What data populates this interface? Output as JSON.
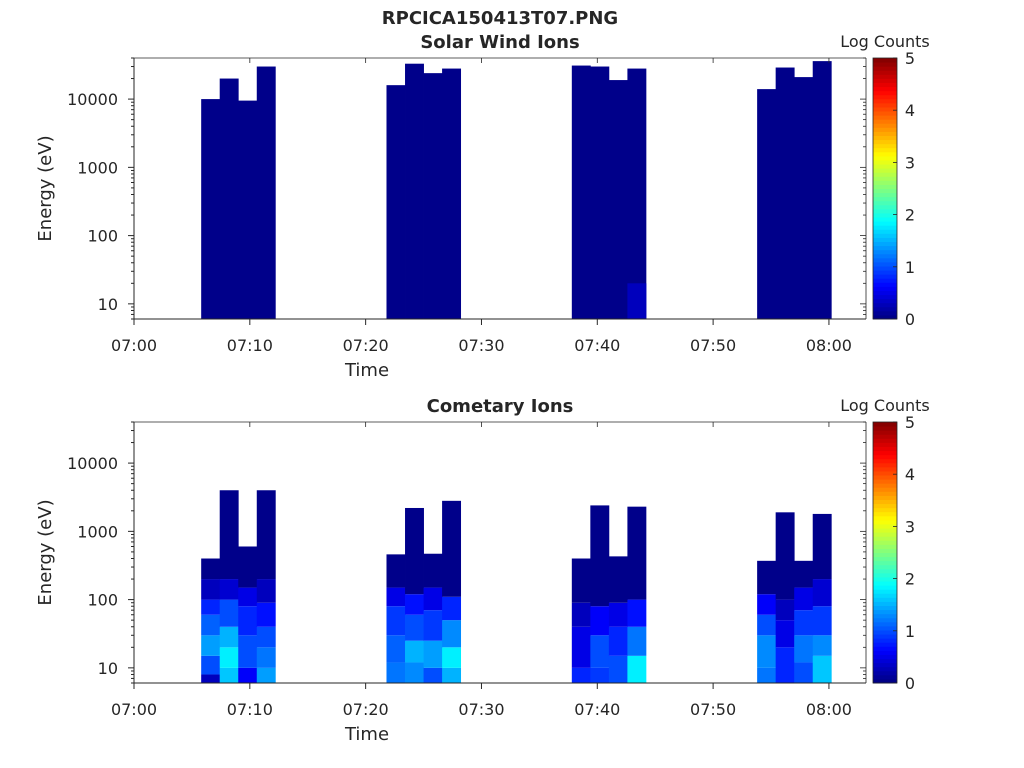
{
  "page_title": "RPCICA150413T07.PNG",
  "colors": {
    "axis": "#262626",
    "colormap": [
      "#00007f",
      "#0000ff",
      "#007fff",
      "#00ffff",
      "#7fff7f",
      "#ffff00",
      "#ff7f00",
      "#ff0000",
      "#7f0000"
    ]
  },
  "chart_data": [
    {
      "type": "heatmap",
      "title": "Solar Wind Ions",
      "xlabel": "Time",
      "ylabel": "Energy (eV)",
      "x_ticks": [
        "07:00",
        "07:10",
        "07:20",
        "07:30",
        "07:40",
        "07:50",
        "08:00"
      ],
      "x_tick_minutes": [
        0,
        10,
        20,
        30,
        40,
        50,
        60
      ],
      "xlim_minutes": [
        0,
        63.2
      ],
      "y_scale": "log",
      "ylim": [
        6,
        40000
      ],
      "y_ticks": [
        "10",
        "100",
        "1000",
        "10000"
      ],
      "y_tick_values": [
        10,
        100,
        1000,
        10000
      ],
      "colorbar": {
        "label": "Log Counts",
        "ticks": [
          "0",
          "1",
          "2",
          "3",
          "4",
          "5"
        ],
        "range": [
          0,
          5
        ]
      },
      "blocks": [
        {
          "start": 5.8,
          "columns": [
            {
              "w": 1.6,
              "top": 10000,
              "cells": [
                [
                  6,
                  10000,
                  0.05
                ]
              ]
            },
            {
              "w": 1.6,
              "top": 20000,
              "cells": [
                [
                  6,
                  20000,
                  0.05
                ]
              ]
            },
            {
              "w": 1.6,
              "top": 9500,
              "cells": [
                [
                  6,
                  9500,
                  0.05
                ]
              ]
            },
            {
              "w": 1.6,
              "top": 30000,
              "cells": [
                [
                  6,
                  30000,
                  0.05
                ]
              ]
            }
          ]
        },
        {
          "start": 21.8,
          "columns": [
            {
              "w": 1.6,
              "top": 16000,
              "cells": [
                [
                  6,
                  16000,
                  0.05
                ]
              ]
            },
            {
              "w": 1.6,
              "top": 33000,
              "cells": [
                [
                  6,
                  33000,
                  0.05
                ]
              ]
            },
            {
              "w": 1.6,
              "top": 24000,
              "cells": [
                [
                  6,
                  24000,
                  0.05
                ]
              ]
            },
            {
              "w": 1.6,
              "top": 28000,
              "cells": [
                [
                  6,
                  28000,
                  0.05
                ]
              ]
            }
          ]
        },
        {
          "start": 37.8,
          "columns": [
            {
              "w": 1.6,
              "top": 31000,
              "cells": [
                [
                  6,
                  31000,
                  0.05
                ]
              ]
            },
            {
              "w": 1.6,
              "top": 30000,
              "cells": [
                [
                  6,
                  30000,
                  0.05
                ]
              ]
            },
            {
              "w": 1.6,
              "top": 19000,
              "cells": [
                [
                  6,
                  19000,
                  0.05
                ]
              ]
            },
            {
              "w": 1.6,
              "top": 28000,
              "cells": [
                [
                  6,
                  28000,
                  0.05
                ],
                [
                  6,
                  20,
                  0.3
                ]
              ]
            }
          ]
        },
        {
          "start": 53.8,
          "columns": [
            {
              "w": 1.6,
              "top": 14000,
              "cells": [
                [
                  6,
                  14000,
                  0.05
                ]
              ]
            },
            {
              "w": 1.6,
              "top": 29000,
              "cells": [
                [
                  6,
                  29000,
                  0.05
                ]
              ]
            },
            {
              "w": 1.6,
              "top": 21000,
              "cells": [
                [
                  6,
                  21000,
                  0.05
                ]
              ]
            },
            {
              "w": 1.6,
              "top": 36000,
              "cells": [
                [
                  6,
                  36000,
                  0.05
                ]
              ]
            }
          ]
        }
      ]
    },
    {
      "type": "heatmap",
      "title": "Cometary Ions",
      "xlabel": "Time",
      "ylabel": "Energy (eV)",
      "x_ticks": [
        "07:00",
        "07:10",
        "07:20",
        "07:30",
        "07:40",
        "07:50",
        "08:00"
      ],
      "x_tick_minutes": [
        0,
        10,
        20,
        30,
        40,
        50,
        60
      ],
      "xlim_minutes": [
        0,
        63.2
      ],
      "y_scale": "log",
      "ylim": [
        6,
        40000
      ],
      "y_ticks": [
        "10",
        "100",
        "1000",
        "10000"
      ],
      "y_tick_values": [
        10,
        100,
        1000,
        10000
      ],
      "colorbar": {
        "label": "Log Counts",
        "ticks": [
          "0",
          "1",
          "2",
          "3",
          "4",
          "5"
        ],
        "range": [
          0,
          5
        ]
      },
      "blocks": [
        {
          "start": 5.8,
          "columns": [
            {
              "w": 1.6,
              "top": 400,
              "cells": [
                [
                  6,
                  8,
                  0.3
                ],
                [
                  8,
                  15,
                  1.0
                ],
                [
                  15,
                  30,
                  1.4
                ],
                [
                  30,
                  60,
                  1.1
                ],
                [
                  60,
                  100,
                  0.8
                ],
                [
                  100,
                  200,
                  0.3
                ],
                [
                  200,
                  400,
                  0.05
                ]
              ]
            },
            {
              "w": 1.6,
              "top": 4000,
              "cells": [
                [
                  6,
                  10,
                  1.6
                ],
                [
                  10,
                  20,
                  1.8
                ],
                [
                  20,
                  40,
                  1.5
                ],
                [
                  40,
                  100,
                  1.0
                ],
                [
                  100,
                  200,
                  0.4
                ],
                [
                  200,
                  4000,
                  0.05
                ]
              ]
            },
            {
              "w": 1.6,
              "top": 600,
              "cells": [
                [
                  6,
                  10,
                  0.6
                ],
                [
                  10,
                  30,
                  1.0
                ],
                [
                  30,
                  80,
                  0.8
                ],
                [
                  80,
                  150,
                  0.5
                ],
                [
                  150,
                  600,
                  0.05
                ]
              ]
            },
            {
              "w": 1.6,
              "top": 4000,
              "cells": [
                [
                  6,
                  10,
                  1.4
                ],
                [
                  10,
                  20,
                  1.2
                ],
                [
                  20,
                  40,
                  1.0
                ],
                [
                  40,
                  90,
                  0.7
                ],
                [
                  90,
                  200,
                  0.3
                ],
                [
                  200,
                  4000,
                  0.05
                ]
              ]
            }
          ]
        },
        {
          "start": 21.8,
          "columns": [
            {
              "w": 1.6,
              "top": 460,
              "cells": [
                [
                  6,
                  12,
                  1.2
                ],
                [
                  12,
                  30,
                  1.1
                ],
                [
                  30,
                  80,
                  0.9
                ],
                [
                  80,
                  150,
                  0.5
                ],
                [
                  150,
                  460,
                  0.05
                ]
              ]
            },
            {
              "w": 1.6,
              "top": 2200,
              "cells": [
                [
                  6,
                  12,
                  1.3
                ],
                [
                  12,
                  25,
                  1.5
                ],
                [
                  25,
                  60,
                  1.0
                ],
                [
                  60,
                  120,
                  0.7
                ],
                [
                  120,
                  2200,
                  0.05
                ]
              ]
            },
            {
              "w": 1.6,
              "top": 470,
              "cells": [
                [
                  6,
                  10,
                  1.0
                ],
                [
                  10,
                  25,
                  1.4
                ],
                [
                  25,
                  70,
                  0.9
                ],
                [
                  70,
                  150,
                  0.5
                ],
                [
                  150,
                  470,
                  0.05
                ]
              ]
            },
            {
              "w": 1.6,
              "top": 2800,
              "cells": [
                [
                  6,
                  10,
                  1.5
                ],
                [
                  10,
                  20,
                  1.8
                ],
                [
                  20,
                  50,
                  1.3
                ],
                [
                  50,
                  110,
                  0.8
                ],
                [
                  110,
                  2800,
                  0.05
                ]
              ]
            }
          ]
        },
        {
          "start": 37.8,
          "columns": [
            {
              "w": 1.6,
              "top": 400,
              "cells": [
                [
                  6,
                  10,
                  0.8
                ],
                [
                  10,
                  40,
                  0.5
                ],
                [
                  40,
                  90,
                  0.3
                ],
                [
                  90,
                  400,
                  0.05
                ]
              ]
            },
            {
              "w": 1.6,
              "top": 2400,
              "cells": [
                [
                  6,
                  10,
                  0.9
                ],
                [
                  10,
                  30,
                  1.0
                ],
                [
                  30,
                  80,
                  0.6
                ],
                [
                  80,
                  2400,
                  0.05
                ]
              ]
            },
            {
              "w": 1.6,
              "top": 430,
              "cells": [
                [
                  6,
                  15,
                  1.0
                ],
                [
                  15,
                  40,
                  0.8
                ],
                [
                  40,
                  90,
                  0.5
                ],
                [
                  90,
                  430,
                  0.05
                ]
              ]
            },
            {
              "w": 1.6,
              "top": 2300,
              "cells": [
                [
                  6,
                  15,
                  1.8
                ],
                [
                  15,
                  40,
                  1.2
                ],
                [
                  40,
                  100,
                  0.7
                ],
                [
                  100,
                  2300,
                  0.05
                ]
              ]
            }
          ]
        },
        {
          "start": 53.8,
          "columns": [
            {
              "w": 1.6,
              "top": 370,
              "cells": [
                [
                  6,
                  10,
                  1.2
                ],
                [
                  10,
                  30,
                  1.3
                ],
                [
                  30,
                  60,
                  1.0
                ],
                [
                  60,
                  120,
                  0.6
                ],
                [
                  120,
                  370,
                  0.05
                ]
              ]
            },
            {
              "w": 1.6,
              "top": 1900,
              "cells": [
                [
                  6,
                  20,
                  0.8
                ],
                [
                  20,
                  50,
                  0.5
                ],
                [
                  50,
                  100,
                  0.3
                ],
                [
                  100,
                  1900,
                  0.05
                ]
              ]
            },
            {
              "w": 1.6,
              "top": 370,
              "cells": [
                [
                  6,
                  12,
                  1.0
                ],
                [
                  12,
                  30,
                  1.2
                ],
                [
                  30,
                  70,
                  0.9
                ],
                [
                  70,
                  150,
                  0.5
                ],
                [
                  150,
                  370,
                  0.05
                ]
              ]
            },
            {
              "w": 1.6,
              "top": 1800,
              "cells": [
                [
                  6,
                  15,
                  1.6
                ],
                [
                  15,
                  30,
                  1.3
                ],
                [
                  30,
                  80,
                  0.9
                ],
                [
                  80,
                  200,
                  0.4
                ],
                [
                  200,
                  1800,
                  0.05
                ]
              ]
            }
          ]
        }
      ]
    }
  ]
}
